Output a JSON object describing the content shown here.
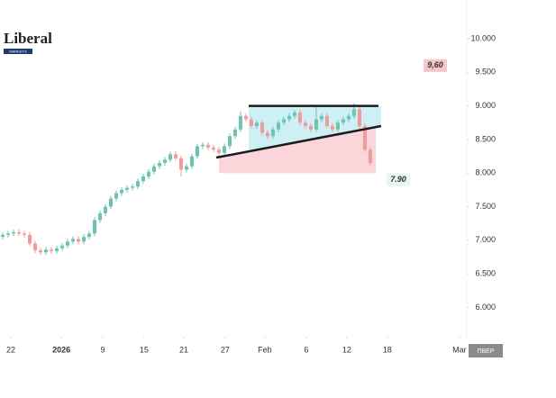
{
  "chart_data": {
    "type": "candlestick",
    "logo": {
      "title": "Liberal",
      "subtitle": "MARKETS"
    },
    "button": "ПВЕР",
    "x": [
      0,
      2,
      4,
      6,
      8,
      10,
      12,
      14,
      16,
      18,
      20,
      22,
      24,
      26,
      28,
      30,
      32,
      34,
      36,
      38,
      40,
      42,
      44,
      46,
      48,
      50,
      52,
      54,
      56,
      58,
      60,
      62,
      64,
      66,
      68,
      70,
      72,
      74,
      76,
      78,
      80,
      82,
      84,
      86,
      88,
      90,
      92,
      94,
      96,
      98,
      100,
      102,
      104,
      106,
      108,
      110,
      112,
      114,
      116,
      118,
      120,
      122,
      124,
      126,
      128,
      130,
      132,
      134,
      136
    ],
    "open": [
      7.05,
      7.08,
      7.1,
      7.12,
      7.1,
      7.08,
      6.95,
      6.85,
      6.82,
      6.86,
      6.84,
      6.88,
      6.92,
      6.98,
      7.02,
      6.98,
      7.05,
      7.1,
      7.3,
      7.4,
      7.5,
      7.62,
      7.7,
      7.75,
      7.78,
      7.8,
      7.88,
      7.95,
      8.02,
      8.1,
      8.15,
      8.2,
      8.28,
      8.22,
      8.05,
      8.1,
      8.25,
      8.4,
      8.42,
      8.38,
      8.35,
      8.3,
      8.4,
      8.55,
      8.65,
      8.85,
      8.8,
      8.7,
      8.75,
      8.6,
      8.55,
      8.65,
      8.75,
      8.8,
      8.85,
      8.9,
      8.75,
      8.7,
      8.65,
      8.8,
      8.85,
      8.7,
      8.65,
      8.75,
      8.8,
      8.85,
      8.95,
      8.7,
      8.35
    ],
    "high": [
      7.12,
      7.14,
      7.16,
      7.16,
      7.14,
      7.12,
      6.99,
      6.89,
      6.9,
      6.9,
      6.92,
      6.96,
      7.02,
      7.06,
      7.06,
      7.09,
      7.14,
      7.34,
      7.44,
      7.54,
      7.66,
      7.74,
      7.79,
      7.82,
      7.84,
      7.92,
      7.99,
      8.06,
      8.14,
      8.19,
      8.24,
      8.32,
      8.32,
      8.26,
      8.14,
      8.29,
      8.44,
      8.46,
      8.46,
      8.42,
      8.39,
      8.44,
      8.59,
      8.69,
      8.92,
      8.89,
      8.84,
      8.79,
      8.79,
      8.64,
      8.69,
      8.79,
      8.84,
      8.89,
      8.94,
      8.94,
      8.79,
      8.74,
      8.98,
      8.89,
      8.89,
      8.74,
      8.79,
      8.84,
      8.89,
      9.04,
      8.99,
      8.74,
      8.39
    ],
    "low": [
      7.01,
      7.04,
      7.06,
      7.06,
      7.04,
      6.91,
      6.81,
      6.78,
      6.78,
      6.8,
      6.8,
      6.84,
      6.88,
      6.94,
      6.94,
      6.94,
      7.01,
      7.06,
      7.26,
      7.36,
      7.46,
      7.58,
      7.66,
      7.71,
      7.74,
      7.76,
      7.84,
      7.91,
      7.98,
      8.06,
      8.11,
      8.16,
      8.18,
      7.95,
      8.01,
      8.06,
      8.21,
      8.36,
      8.34,
      8.31,
      8.26,
      8.26,
      8.36,
      8.51,
      8.61,
      8.76,
      8.66,
      8.66,
      8.56,
      8.51,
      8.51,
      8.61,
      8.71,
      8.76,
      8.81,
      8.71,
      8.66,
      8.61,
      8.61,
      8.76,
      8.66,
      8.61,
      8.61,
      8.71,
      8.76,
      8.81,
      8.66,
      8.31,
      8.11
    ],
    "close": [
      7.08,
      7.1,
      7.12,
      7.1,
      7.08,
      6.95,
      6.85,
      6.82,
      6.86,
      6.84,
      6.88,
      6.92,
      6.98,
      7.02,
      6.98,
      7.05,
      7.1,
      7.3,
      7.4,
      7.5,
      7.62,
      7.7,
      7.75,
      7.78,
      7.8,
      7.88,
      7.95,
      8.02,
      8.1,
      8.15,
      8.2,
      8.28,
      8.22,
      8.05,
      8.1,
      8.25,
      8.4,
      8.42,
      8.38,
      8.35,
      8.3,
      8.4,
      8.55,
      8.65,
      8.85,
      8.8,
      8.7,
      8.75,
      8.6,
      8.55,
      8.65,
      8.75,
      8.8,
      8.85,
      8.9,
      8.75,
      8.7,
      8.65,
      8.8,
      8.85,
      8.7,
      8.65,
      8.75,
      8.8,
      8.85,
      8.95,
      8.7,
      8.35,
      8.15
    ],
    "up_color": "#6cc3b3",
    "down_color": "#f19a9a",
    "resistance": {
      "x": [
        91,
        139
      ],
      "y": [
        9.0,
        9.0
      ],
      "color": "#1a1a1a"
    },
    "trendline": {
      "x": [
        79,
        140
      ],
      "y": [
        8.23,
        8.7
      ],
      "color": "#1a1a1a"
    },
    "zones": [
      {
        "color": "#c6ecf2",
        "x": [
          91,
          140
        ],
        "top": 9.0
      },
      {
        "color": "#f9cfd3",
        "x": [
          80,
          138
        ],
        "bottom": 8.0
      }
    ],
    "annotations": [
      {
        "text": "9,60",
        "value": 9.6,
        "color": "#f7c6ca"
      },
      {
        "text": "7.90",
        "value": 7.9,
        "color": "#e7f6ee"
      }
    ],
    "xlim": [
      -1,
      171.7
    ],
    "ylim": [
      5.617,
      10.576
    ],
    "xticks": [
      {
        "value": 3,
        "label": "22"
      },
      {
        "value": 21.7,
        "label": "2026"
      },
      {
        "value": 37,
        "label": "9"
      },
      {
        "value": 52.3,
        "label": "15"
      },
      {
        "value": 67,
        "label": "21"
      },
      {
        "value": 82.3,
        "label": "27"
      },
      {
        "value": 97,
        "label": "Feb"
      },
      {
        "value": 112.3,
        "label": "6"
      },
      {
        "value": 127.3,
        "label": "12"
      },
      {
        "value": 142.3,
        "label": "18"
      },
      {
        "value": 169,
        "label": "Mar"
      }
    ],
    "yticks": [
      {
        "value": 10,
        "label": "10.000"
      },
      {
        "value": 9.5,
        "label": "9.500"
      },
      {
        "value": 9,
        "label": "9.000"
      },
      {
        "value": 8.5,
        "label": "8.500"
      },
      {
        "value": 8,
        "label": "8.000"
      },
      {
        "value": 7.5,
        "label": "7.500"
      },
      {
        "value": 7,
        "label": "7.000"
      },
      {
        "value": 6.5,
        "label": "6.500"
      },
      {
        "value": 6,
        "label": "6.000"
      }
    ]
  }
}
